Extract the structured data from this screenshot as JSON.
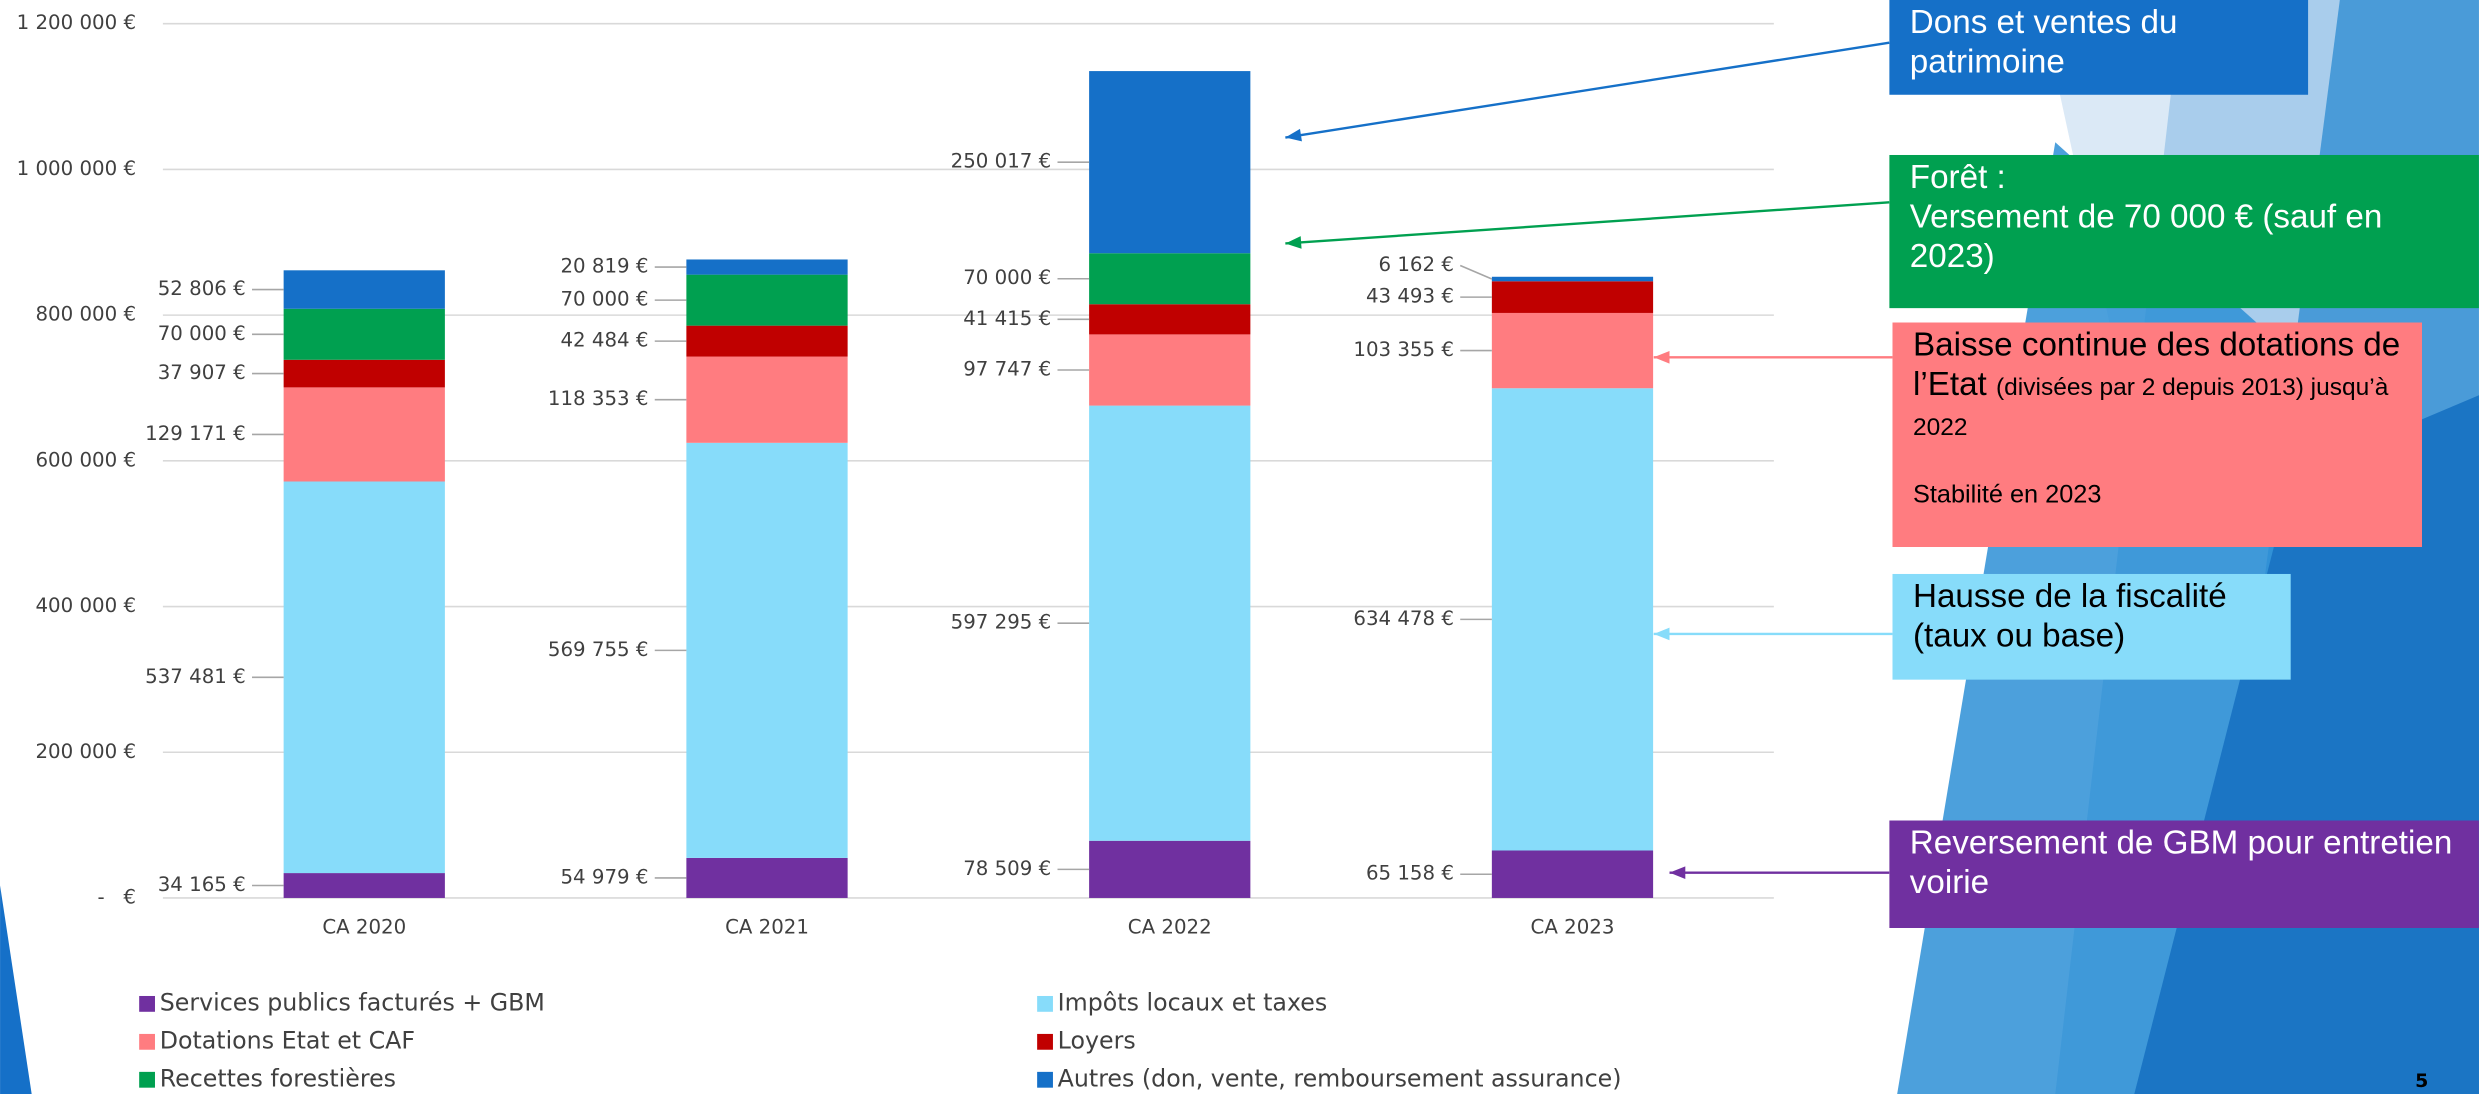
{
  "chart_data": {
    "type": "bar",
    "stacked": true,
    "categories": [
      "CA 2020",
      "CA 2021",
      "CA 2022",
      "CA 2023"
    ],
    "series": [
      {
        "name": "Services publics facturés + GBM",
        "color": "#7030a0",
        "values": [
          34165,
          54979,
          78509,
          65158
        ],
        "value_labels": [
          "34 165 €",
          "54 979 €",
          "78 509 €",
          "65 158 €"
        ]
      },
      {
        "name": "Impôts locaux et taxes",
        "color": "#87dcfa",
        "values": [
          537481,
          569755,
          597295,
          634478
        ],
        "value_labels": [
          "537 481 €",
          "569 755 €",
          "597 295 €",
          "634 478 €"
        ]
      },
      {
        "name": "Dotations Etat et CAF",
        "color": "#ff7c80",
        "values": [
          129171,
          118353,
          97747,
          103355
        ],
        "value_labels": [
          "129 171 €",
          "118 353 €",
          "97 747 €",
          "103 355 €"
        ]
      },
      {
        "name": "Loyers",
        "color": "#c00000",
        "values": [
          37907,
          42484,
          41415,
          43493
        ],
        "value_labels": [
          "37 907 €",
          "42 484 €",
          "41 415 €",
          "43 493 €"
        ]
      },
      {
        "name": "Recettes forestières",
        "color": "#00a050",
        "values": [
          70000,
          70000,
          70000,
          null
        ],
        "value_labels": [
          "70 000 €",
          "70 000 €",
          "70 000 €",
          null
        ]
      },
      {
        "name": "Autres (don, vente, remboursement assurance)",
        "color": "#1570c8",
        "values": [
          52806,
          20819,
          250017,
          6162
        ],
        "value_labels": [
          "52 806 €",
          "20 819 €",
          "250 017 €",
          "6 162 €"
        ]
      }
    ],
    "ylim": [
      0,
      1200000
    ],
    "yticks": [
      {
        "value": 0,
        "label": "-   €"
      },
      {
        "value": 200000,
        "label": "200 000 €"
      },
      {
        "value": 400000,
        "label": "400 000 €"
      },
      {
        "value": 600000,
        "label": "600 000 €"
      },
      {
        "value": 800000,
        "label": "800 000 €"
      },
      {
        "value": 1000000,
        "label": "1 000 000 €"
      },
      {
        "value": 1200000,
        "label": "1 200 000 €"
      }
    ],
    "grid": true,
    "legend": "bottom"
  },
  "annotations": [
    {
      "text": "Dons et ventes du patrimoine",
      "color": "#1570c8",
      "text_color": "#ffffff"
    },
    {
      "heading": "Forêt :",
      "text": "Versement de 70 000 € (sauf en 2023)",
      "color": "#00a050",
      "text_color": "#ffffff"
    },
    {
      "text": "Baisse continue des dotations de l’Etat",
      "detail": "(divisées par 2 depuis 2013) jusqu’à 2022",
      "note": "Stabilité en 2023",
      "color": "#ff7c80",
      "text_color": "#000000"
    },
    {
      "text": "Hausse de la fiscalité (taux ou base)",
      "color": "#87dcfa",
      "text_color": "#000000"
    },
    {
      "text": "Reversement de GBM pour entretien voirie",
      "color": "#7030a0",
      "text_color": "#ffffff"
    }
  ],
  "page_number": "5"
}
